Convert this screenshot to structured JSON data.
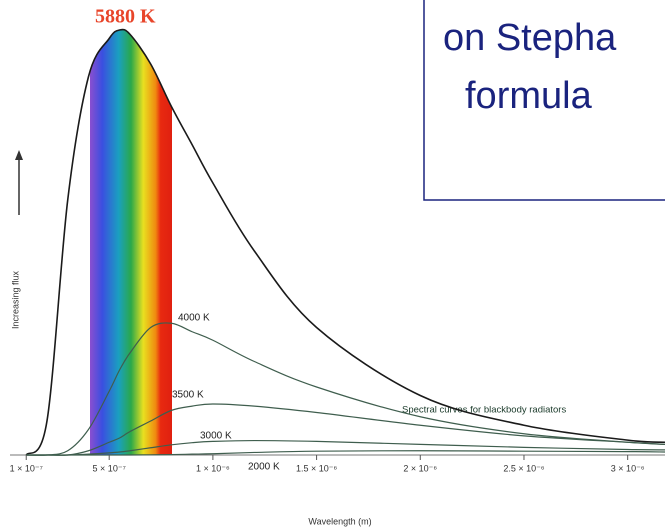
{
  "chart_data": {
    "type": "line",
    "x_label": "Wavelength (m)",
    "y_label": "Increasing flux",
    "annotation": "Spectral curves for blackbody radiators",
    "x": [
      1e-07,
      2e-07,
      3e-07,
      4e-07,
      5e-07,
      5.5e-07,
      6e-07,
      7e-07,
      8e-07,
      9e-07,
      1e-06,
      1.2e-06,
      1.5e-06,
      2e-06,
      2.5e-06,
      3e-06,
      3.18e-06
    ],
    "series": [
      {
        "name": "5880 K",
        "color": "#1a1a1a",
        "values": [
          0,
          8,
          60,
          89,
          98,
          100,
          99,
          92,
          82,
          73,
          64,
          48,
          30,
          14,
          7,
          3.5,
          3
        ]
      },
      {
        "name": "4000 K",
        "color": "#3f5e4e",
        "values": [
          0,
          0,
          1,
          6,
          15,
          20,
          24,
          30,
          31,
          29,
          27,
          22,
          16,
          9,
          5,
          3,
          2.5
        ]
      },
      {
        "name": "3500 K",
        "color": "#3f5e4e",
        "values": [
          0,
          0,
          0,
          1,
          3,
          4,
          5.5,
          8,
          10.5,
          11.5,
          12,
          11.5,
          10,
          7,
          4.5,
          3,
          2.5
        ]
      },
      {
        "name": "3000 K",
        "color": "#3f5e4e",
        "values": [
          0,
          0,
          0,
          0.2,
          0.5,
          0.7,
          1,
          1.7,
          2.4,
          2.9,
          3.2,
          3.4,
          3.2,
          2.5,
          1.8,
          1.3,
          1.2
        ]
      },
      {
        "name": "2000 K",
        "color": "#3f5e4e",
        "values": [
          0,
          0,
          0,
          0,
          0,
          0,
          0,
          0.05,
          0.1,
          0.2,
          0.3,
          0.6,
          0.9,
          1,
          0.9,
          0.8,
          0.7
        ]
      }
    ],
    "xlim": [
      0,
      3.18e-06
    ],
    "ylim": [
      0,
      100
    ],
    "xticks": [
      {
        "value": 1e-07,
        "label": "1 × 10⁻⁷"
      },
      {
        "value": 5e-07,
        "label": "5 × 10⁻⁷"
      },
      {
        "value": 1e-06,
        "label": "1 × 10⁻⁶"
      },
      {
        "value": 1.5e-06,
        "label": "1.5 × 10⁻⁶"
      },
      {
        "value": 2e-06,
        "label": "2 × 10⁻⁶"
      },
      {
        "value": 2.5e-06,
        "label": "2.5 × 10⁻⁶"
      },
      {
        "value": 3e-06,
        "label": "3 × 10⁻⁶"
      }
    ]
  },
  "overlay": {
    "lines": [
      "on Stepha",
      "formula"
    ]
  }
}
